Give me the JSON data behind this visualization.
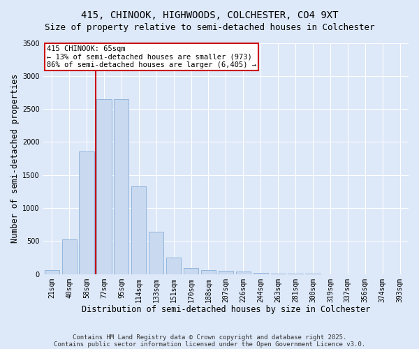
{
  "title_line1": "415, CHINOOK, HIGHWOODS, COLCHESTER, CO4 9XT",
  "title_line2": "Size of property relative to semi-detached houses in Colchester",
  "xlabel": "Distribution of semi-detached houses by size in Colchester",
  "ylabel": "Number of semi-detached properties",
  "categories": [
    "21sqm",
    "40sqm",
    "58sqm",
    "77sqm",
    "95sqm",
    "114sqm",
    "133sqm",
    "151sqm",
    "170sqm",
    "188sqm",
    "207sqm",
    "226sqm",
    "244sqm",
    "263sqm",
    "281sqm",
    "300sqm",
    "319sqm",
    "337sqm",
    "356sqm",
    "374sqm",
    "393sqm"
  ],
  "values": [
    65,
    525,
    1860,
    2650,
    2650,
    1330,
    640,
    250,
    95,
    65,
    50,
    35,
    20,
    10,
    5,
    3,
    2,
    1,
    1,
    0,
    0
  ],
  "bar_color": "#c8d9f0",
  "bar_edge_color": "#8ab0d8",
  "red_line_color": "#cc0000",
  "annotation_text": "415 CHINOOK: 65sqm\n← 13% of semi-detached houses are smaller (973)\n86% of semi-detached houses are larger (6,405) →",
  "annotation_box_color": "#cc0000",
  "ylim": [
    0,
    3500
  ],
  "yticks": [
    0,
    500,
    1000,
    1500,
    2000,
    2500,
    3000,
    3500
  ],
  "background_color": "#dde8f8",
  "plot_bg_color": "#dde8f8",
  "grid_color": "#ffffff",
  "footer_line1": "Contains HM Land Registry data © Crown copyright and database right 2025.",
  "footer_line2": "Contains public sector information licensed under the Open Government Licence v3.0.",
  "red_line_x": 2.5,
  "title_fontsize": 10,
  "subtitle_fontsize": 9,
  "axis_label_fontsize": 8.5,
  "tick_fontsize": 7,
  "footer_fontsize": 6.5,
  "ann_fontsize": 7.5
}
